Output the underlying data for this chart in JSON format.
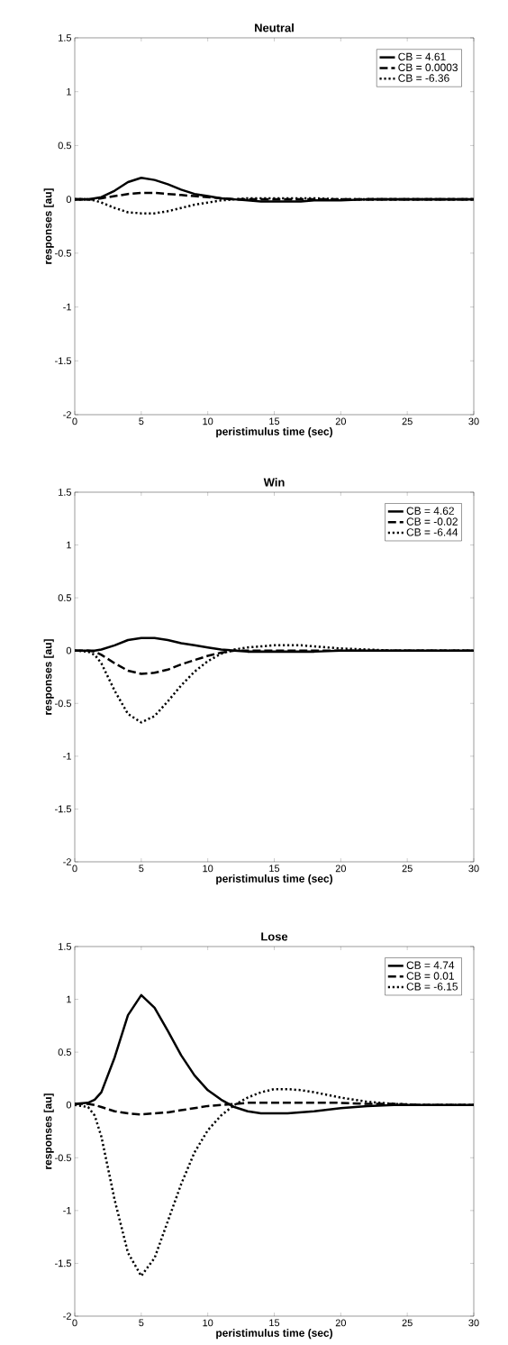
{
  "chart_data": [
    {
      "type": "line",
      "title": "Neutral",
      "xlabel": "peristimulus time (sec)",
      "ylabel": "responses [au]",
      "legend": "top right",
      "grid": false,
      "x": [
        0,
        1,
        1.5,
        2,
        3,
        4,
        5,
        6,
        7,
        8,
        9,
        10,
        11,
        12,
        13,
        14,
        15,
        16,
        17,
        18,
        20,
        22,
        24,
        26,
        28,
        30
      ],
      "series": [
        {
          "name": "CB = 4.61",
          "color": "#000000",
          "line_style": "solid",
          "values": [
            0,
            0,
            0.01,
            0.02,
            0.08,
            0.16,
            0.2,
            0.18,
            0.14,
            0.09,
            0.05,
            0.03,
            0.01,
            0,
            -0.01,
            -0.02,
            -0.02,
            -0.02,
            -0.02,
            -0.01,
            -0.01,
            0,
            0,
            0,
            0,
            0
          ]
        },
        {
          "name": "CB = 0.0003",
          "color": "#000000",
          "line_style": "dashed",
          "values": [
            0,
            0,
            0,
            0.01,
            0.03,
            0.05,
            0.06,
            0.06,
            0.05,
            0.04,
            0.03,
            0.02,
            0.01,
            0,
            0,
            0,
            0,
            0,
            0,
            0,
            0,
            0,
            0,
            0,
            0,
            0
          ]
        },
        {
          "name": "CB = -6.36",
          "color": "#000000",
          "line_style": "dotted",
          "values": [
            0,
            0,
            -0.01,
            -0.03,
            -0.08,
            -0.12,
            -0.13,
            -0.13,
            -0.11,
            -0.08,
            -0.05,
            -0.03,
            -0.01,
            0,
            0.01,
            0.01,
            0.01,
            0.01,
            0.01,
            0.01,
            0,
            0,
            0,
            0,
            0,
            0
          ]
        }
      ],
      "xlim": [
        0,
        30
      ],
      "ylim": [
        -2,
        1.5
      ],
      "xticks": [
        0,
        5,
        10,
        15,
        20,
        25,
        30
      ],
      "yticks": [
        -2,
        -1.5,
        -1,
        -0.5,
        0,
        0.5,
        1,
        1.5
      ]
    },
    {
      "type": "line",
      "title": "Win",
      "xlabel": "peristimulus time (sec)",
      "ylabel": "responses [au]",
      "legend": "top right",
      "grid": false,
      "x": [
        0,
        1,
        1.5,
        2,
        3,
        4,
        5,
        6,
        7,
        8,
        9,
        10,
        11,
        12,
        13,
        14,
        15,
        16,
        17,
        18,
        20,
        22,
        24,
        26,
        28,
        30
      ],
      "series": [
        {
          "name": "CB = 4.62",
          "color": "#000000",
          "line_style": "solid",
          "values": [
            0,
            0,
            0,
            0.01,
            0.05,
            0.1,
            0.12,
            0.12,
            0.1,
            0.07,
            0.05,
            0.03,
            0.01,
            0,
            -0.01,
            -0.01,
            -0.01,
            -0.01,
            -0.01,
            -0.01,
            0,
            0,
            0,
            0,
            0,
            0
          ]
        },
        {
          "name": "CB = -0.02",
          "color": "#000000",
          "line_style": "dashed",
          "values": [
            0,
            0,
            -0.01,
            -0.04,
            -0.12,
            -0.19,
            -0.22,
            -0.21,
            -0.18,
            -0.13,
            -0.09,
            -0.05,
            -0.02,
            0,
            0,
            0,
            0,
            0,
            0,
            0,
            0,
            0,
            0,
            0,
            0,
            0
          ]
        },
        {
          "name": "CB = -6.44",
          "color": "#000000",
          "line_style": "dotted",
          "values": [
            0,
            -0.01,
            -0.04,
            -0.12,
            -0.38,
            -0.6,
            -0.68,
            -0.62,
            -0.48,
            -0.33,
            -0.2,
            -0.1,
            -0.03,
            0.01,
            0.03,
            0.04,
            0.05,
            0.05,
            0.05,
            0.04,
            0.02,
            0.01,
            0,
            0,
            0,
            0
          ]
        }
      ],
      "xlim": [
        0,
        30
      ],
      "ylim": [
        -2,
        1.5
      ],
      "xticks": [
        0,
        5,
        10,
        15,
        20,
        25,
        30
      ],
      "yticks": [
        -2,
        -1.5,
        -1,
        -0.5,
        0,
        0.5,
        1,
        1.5
      ]
    },
    {
      "type": "line",
      "title": "Lose",
      "xlabel": "peristimulus time (sec)",
      "ylabel": "responses [au]",
      "legend": "top right",
      "grid": false,
      "x": [
        0,
        1,
        1.5,
        2,
        3,
        4,
        5,
        6,
        7,
        8,
        9,
        10,
        11,
        12,
        13,
        14,
        15,
        16,
        17,
        18,
        20,
        22,
        24,
        26,
        28,
        30
      ],
      "series": [
        {
          "name": "CB = 4.74",
          "color": "#000000",
          "line_style": "solid",
          "values": [
            0.01,
            0.02,
            0.05,
            0.12,
            0.45,
            0.85,
            1.04,
            0.92,
            0.7,
            0.47,
            0.28,
            0.14,
            0.05,
            -0.02,
            -0.06,
            -0.08,
            -0.08,
            -0.08,
            -0.07,
            -0.06,
            -0.03,
            -0.01,
            0,
            0,
            0,
            0
          ]
        },
        {
          "name": "CB = 0.01",
          "color": "#000000",
          "line_style": "dashed",
          "values": [
            0.01,
            0.01,
            0,
            -0.02,
            -0.06,
            -0.08,
            -0.09,
            -0.08,
            -0.07,
            -0.05,
            -0.03,
            -0.01,
            0,
            0.01,
            0.02,
            0.02,
            0.02,
            0.02,
            0.02,
            0.02,
            0.02,
            0.01,
            0.01,
            0,
            0,
            0
          ]
        },
        {
          "name": "CB = -6.15",
          "color": "#000000",
          "line_style": "dotted",
          "values": [
            0,
            -0.02,
            -0.1,
            -0.3,
            -0.9,
            -1.4,
            -1.62,
            -1.45,
            -1.1,
            -0.75,
            -0.45,
            -0.24,
            -0.1,
            0,
            0.07,
            0.12,
            0.15,
            0.15,
            0.14,
            0.12,
            0.07,
            0.03,
            0.01,
            0,
            0,
            0
          ]
        }
      ],
      "xlim": [
        0,
        30
      ],
      "ylim": [
        -2,
        1.5
      ],
      "xticks": [
        0,
        5,
        10,
        15,
        20,
        25,
        30
      ],
      "yticks": [
        -2,
        -1.5,
        -1,
        -0.5,
        0,
        0.5,
        1,
        1.5
      ]
    }
  ]
}
